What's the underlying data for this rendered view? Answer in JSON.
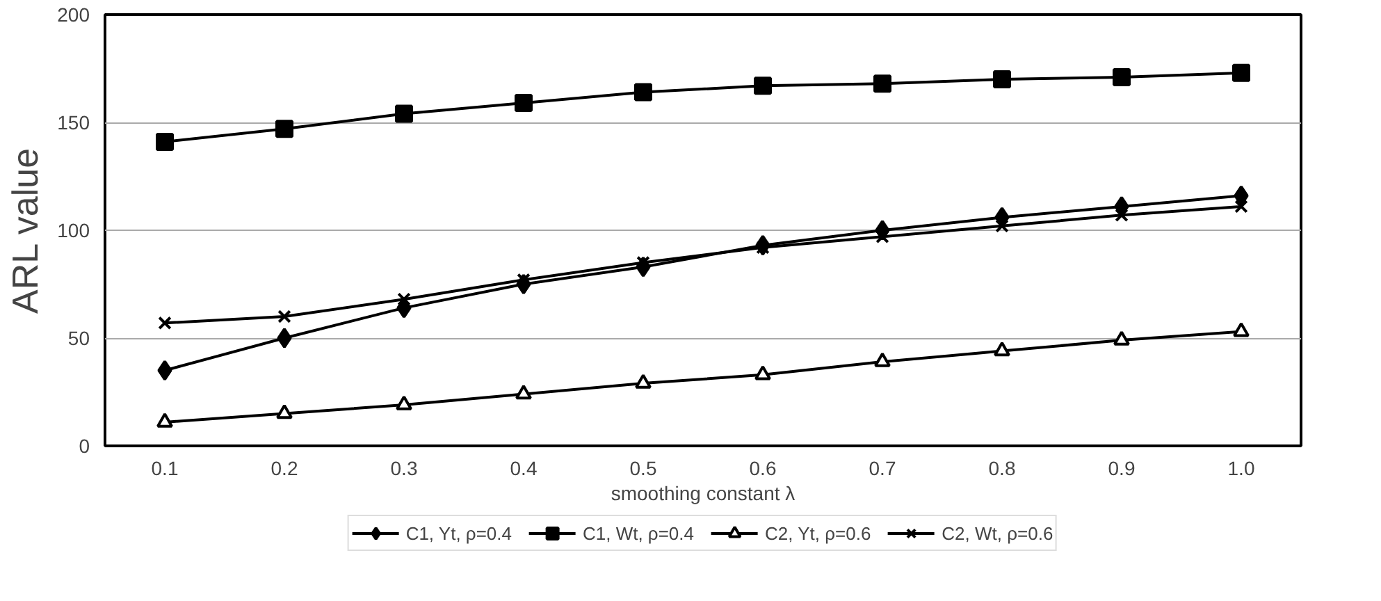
{
  "chart_data": {
    "type": "line",
    "xlabel": "smoothing constant λ",
    "ylabel": "ARL value",
    "categories": [
      "0.1",
      "0.2",
      "0.3",
      "0.4",
      "0.5",
      "0.6",
      "0.7",
      "0.8",
      "0.9",
      "1.0"
    ],
    "series": [
      {
        "name": "C1, Yt, ρ=0.4",
        "color": "#000000",
        "marker": "diamond",
        "values": [
          35,
          50,
          64,
          75,
          83,
          93,
          100,
          106,
          111,
          116
        ]
      },
      {
        "name": "C1, Wt, ρ=0.4",
        "color": "#000000",
        "marker": "square",
        "values": [
          141,
          147,
          154,
          159,
          164,
          167,
          168,
          170,
          171,
          173
        ]
      },
      {
        "name": "C2, Yt, ρ=0.6",
        "color": "#000000",
        "marker": "triangle",
        "values": [
          11,
          15,
          19,
          24,
          29,
          33,
          39,
          44,
          49,
          53
        ]
      },
      {
        "name": "C2, Wt, ρ=0.6",
        "color": "#000000",
        "marker": "cross",
        "values": [
          57,
          60,
          68,
          77,
          85,
          92,
          97,
          102,
          107,
          111
        ]
      }
    ],
    "ylim": [
      0,
      200
    ],
    "yticks": [
      0,
      50,
      100,
      150,
      200
    ],
    "grid": "y",
    "legend": "bottom",
    "line_style": "solid"
  }
}
